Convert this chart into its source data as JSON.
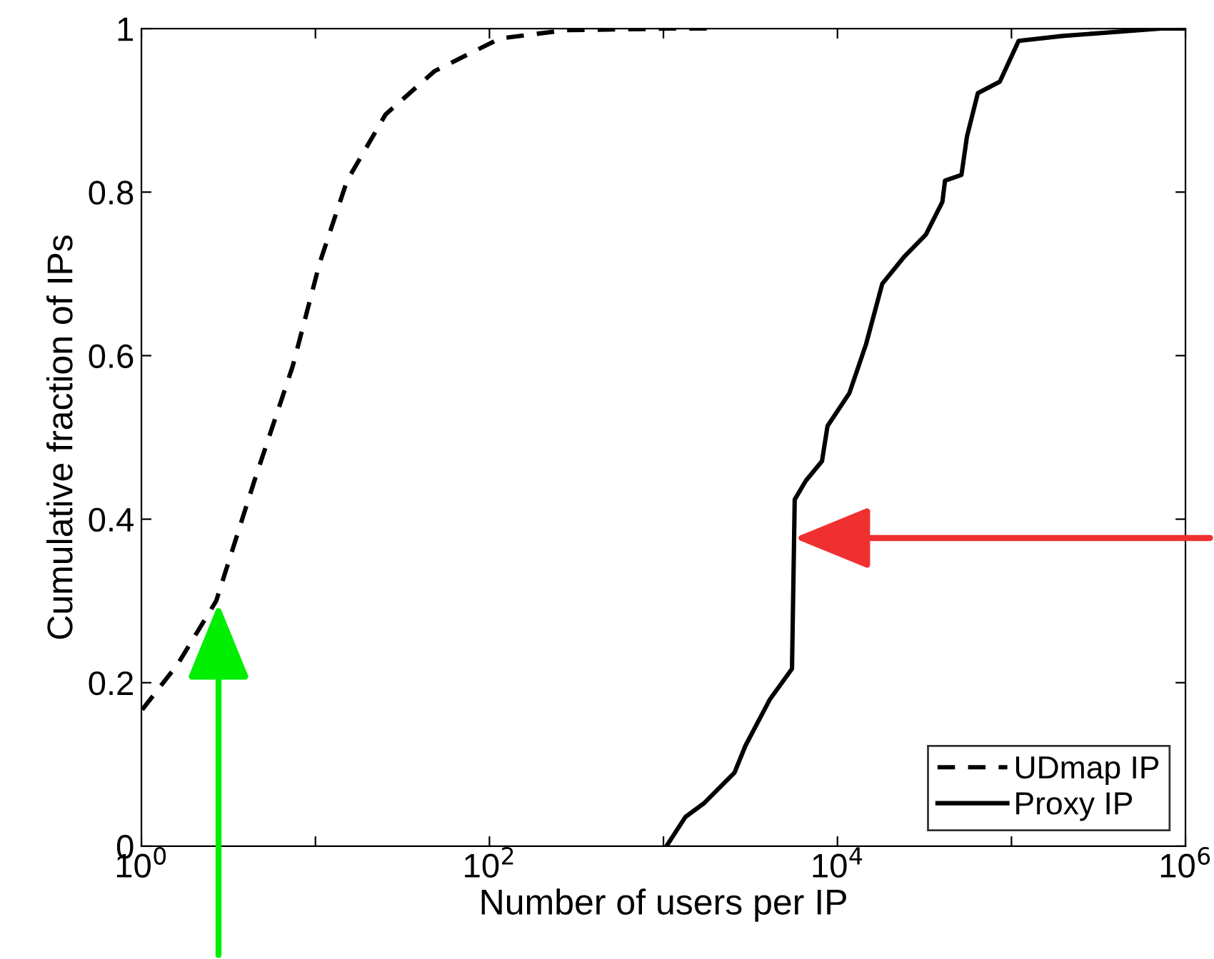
{
  "chart_data": {
    "type": "line",
    "xlabel": "Number of users per IP",
    "ylabel": "Cumulative fraction of IPs",
    "log": "x",
    "xlim": [
      1,
      1000000
    ],
    "ylim": [
      0,
      1
    ],
    "xticks": [
      {
        "value": 1,
        "label": "10$^{0}$"
      },
      {
        "value": 10,
        "label": null
      },
      {
        "value": 100,
        "label": "10$^{2}$"
      },
      {
        "value": 1000,
        "label": null
      },
      {
        "value": 10000,
        "label": "10$^{4}$"
      },
      {
        "value": 100000,
        "label": null
      },
      {
        "value": 1000000,
        "label": "10$^{6}$"
      }
    ],
    "yticks": [
      0,
      0.2,
      0.4,
      0.6,
      0.8,
      1
    ],
    "grid": false,
    "legend": "bottom right",
    "marker": "none",
    "series": [
      {
        "name": "UDmap IP",
        "color": "#000000",
        "line_style": "dashed",
        "x": [
          1.01,
          1.62,
          2.69,
          4.46,
          7.4,
          10.6,
          15.2,
          25.3,
          48.4,
          115,
          275,
          1100,
          1780
        ],
        "values": [
          0.167,
          0.223,
          0.3,
          0.447,
          0.587,
          0.714,
          0.814,
          0.895,
          0.948,
          0.988,
          0.998,
          1.0,
          1.0
        ]
      },
      {
        "name": "Proxy IP",
        "color": "#000000",
        "line_style": "solid",
        "x": [
          1040,
          1340,
          1720,
          2560,
          2960,
          4100,
          5480,
          5680,
          6580,
          8150,
          8770,
          11700,
          14600,
          18100,
          24200,
          32200,
          40100,
          41500,
          51600,
          55500,
          64100,
          85700,
          110000,
          197000,
          724000,
          1000000
        ],
        "values": [
          0.0,
          0.036,
          0.053,
          0.09,
          0.123,
          0.18,
          0.217,
          0.424,
          0.447,
          0.471,
          0.514,
          0.554,
          0.614,
          0.688,
          0.721,
          0.748,
          0.788,
          0.814,
          0.821,
          0.868,
          0.921,
          0.935,
          0.985,
          0.991,
          1.0,
          1.0
        ]
      }
    ]
  }
}
